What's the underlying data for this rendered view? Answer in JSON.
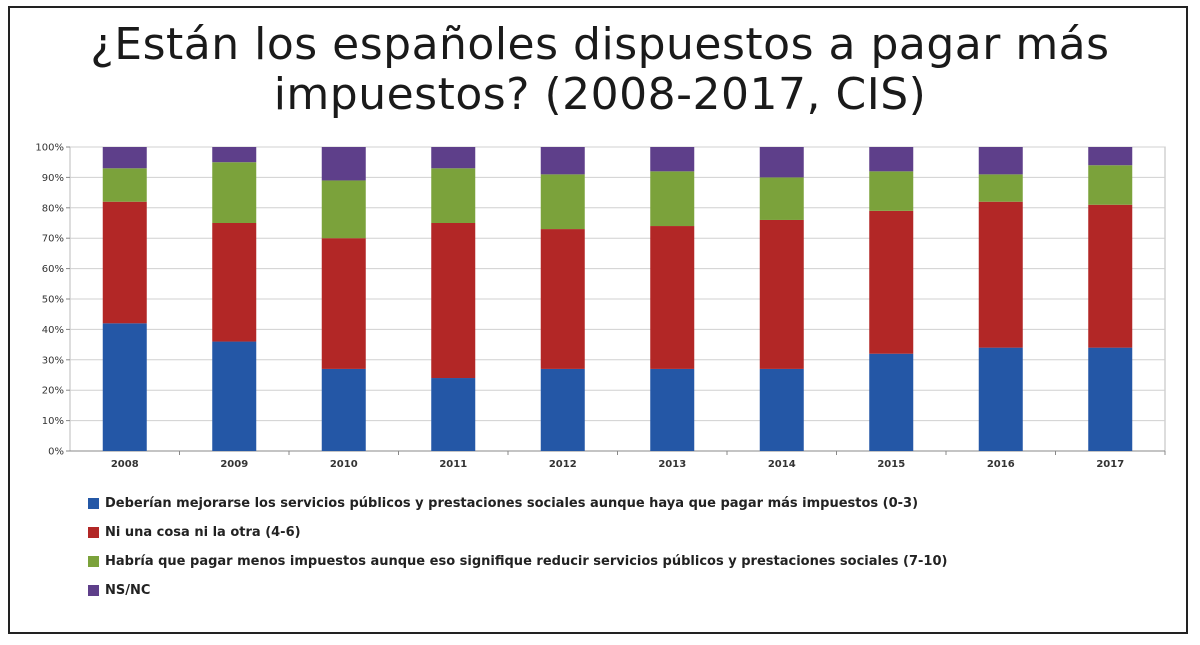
{
  "chart_data": {
    "type": "bar",
    "stacked": true,
    "title": "¿Están los españoles dispuestos a pagar más impuestos? (2008-2017, CIS)",
    "categories": [
      "2008",
      "2009",
      "2010",
      "2011",
      "2012",
      "2013",
      "2014",
      "2015",
      "2016",
      "2017"
    ],
    "ylim": [
      0,
      100
    ],
    "y_ticks": [
      "0%",
      "10%",
      "20%",
      "30%",
      "40%",
      "50%",
      "60%",
      "70%",
      "80%",
      "90%",
      "100%"
    ],
    "grid": true,
    "legend_position": "bottom",
    "series": [
      {
        "name": "Deberían mejorarse los servicios públicos y prestaciones sociales aunque haya que pagar más impuestos (0-3)",
        "color": "#2457a6",
        "values": [
          42,
          36,
          27,
          24,
          27,
          27,
          27,
          32,
          34,
          34
        ]
      },
      {
        "name": "Ni una cosa ni la otra (4-6)",
        "color": "#b22726",
        "values": [
          40,
          39,
          43,
          51,
          46,
          47,
          49,
          47,
          48,
          47
        ]
      },
      {
        "name": "Habría que pagar menos impuestos aunque eso signifique reducir servicios públicos y prestaciones sociales (7-10)",
        "color": "#7ba23b",
        "values": [
          11,
          20,
          19,
          18,
          18,
          18,
          14,
          13,
          9,
          13
        ]
      },
      {
        "name": "NS/NC",
        "color": "#5e3f8a",
        "values": [
          7,
          5,
          11,
          7,
          9,
          8,
          10,
          8,
          9,
          6
        ]
      }
    ]
  }
}
